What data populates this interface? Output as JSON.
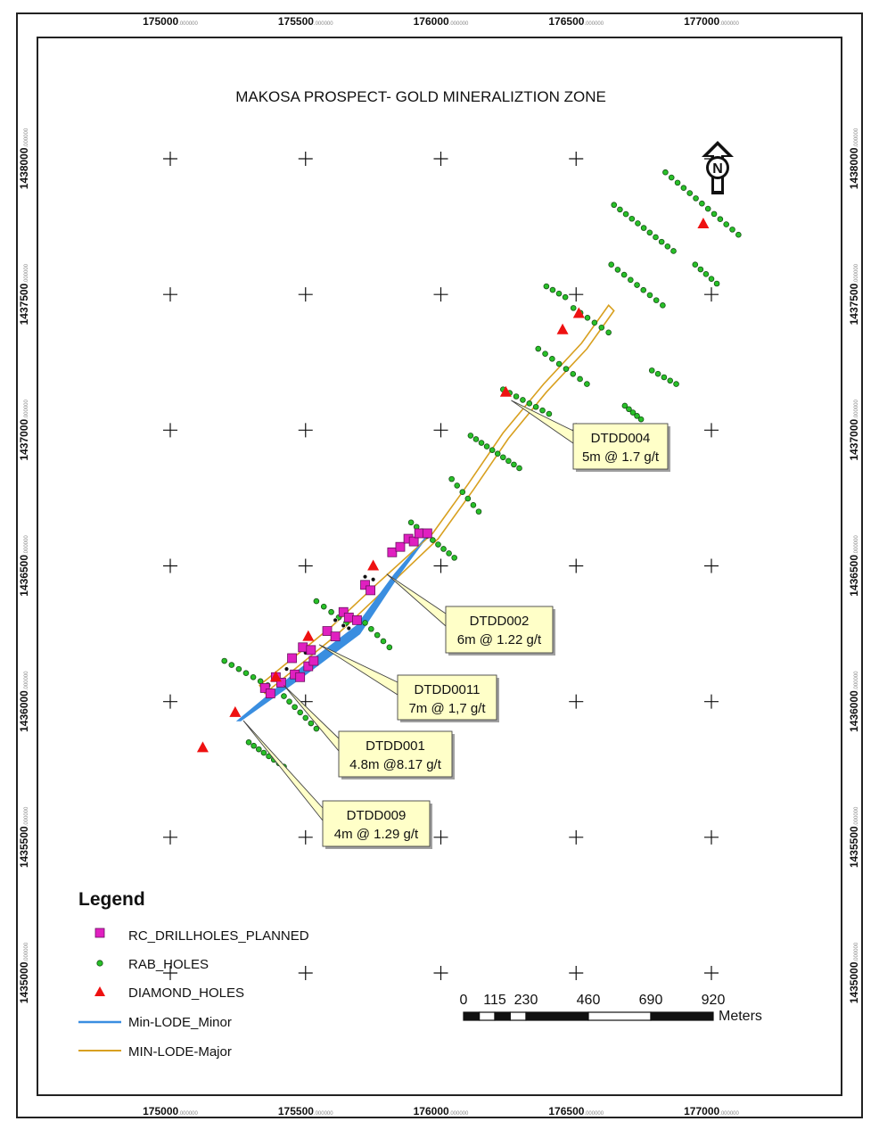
{
  "title": "MAKOSA PROSPECT- GOLD MINERALIZTION ZONE",
  "north_arrow": {
    "icon": "north-arrow-icon",
    "label": "N"
  },
  "grid": {
    "easting_labels": [
      "175000",
      "175500",
      "176000",
      "176500",
      "177000"
    ],
    "northing_labels": [
      "1435000",
      "1435500",
      "1436000",
      "1436500",
      "1437000",
      "1437500",
      "1438000"
    ],
    "easting_values": [
      175000,
      175500,
      176000,
      176500,
      177000
    ],
    "northing_values": [
      1435000,
      1435500,
      1436000,
      1436500,
      1437000,
      1437500,
      1438000
    ],
    "label_suffix": ".000000"
  },
  "callouts": [
    {
      "line1": "DTDD004",
      "line2": "5m @ 1.7 g/t",
      "target": [
        176260,
        1437110
      ]
    },
    {
      "line1": "DTDD002",
      "line2": "6m @ 1.22 g/t",
      "target": [
        175800,
        1436470
      ]
    },
    {
      "line1": "DTDD0011",
      "line2": "7m @ 1,7 g/t",
      "target": [
        175550,
        1436210
      ]
    },
    {
      "line1": "DTDD001",
      "line2": "4.8m @8.17 g/t",
      "target": [
        175420,
        1436060
      ]
    },
    {
      "line1": "DTDD009",
      "line2": "4m @ 1.29 g/t",
      "target": [
        175270,
        1435930
      ]
    }
  ],
  "legend": {
    "title": "Legend",
    "items": [
      {
        "label": "RC_DRILLHOLES_PLANNED",
        "symbol": "square",
        "color": "#e020c0"
      },
      {
        "label": "RAB_HOLES",
        "symbol": "dot",
        "color": "#28c028"
      },
      {
        "label": "DIAMOND_HOLES",
        "symbol": "triangle",
        "color": "#ee1111"
      },
      {
        "label": "Min-LODE_Minor",
        "symbol": "line",
        "color": "#3a8ee0"
      },
      {
        "label": "MIN-LODE-Major",
        "symbol": "line",
        "color": "#d8a020"
      }
    ]
  },
  "scale_bar": {
    "labels": [
      "0",
      "115",
      "230",
      "460",
      "690",
      "920"
    ],
    "values": [
      0,
      115,
      230,
      460,
      690,
      920
    ],
    "unit": "Meters"
  },
  "features": {
    "diamond_holes": [
      [
        175120,
        1435830
      ],
      [
        175240,
        1435960
      ],
      [
        175390,
        1436090
      ],
      [
        175510,
        1436240
      ],
      [
        175750,
        1436500
      ],
      [
        176240,
        1437140
      ],
      [
        176450,
        1437370
      ],
      [
        176510,
        1437430
      ],
      [
        176970,
        1437760
      ]
    ],
    "rc_planned": [
      [
        175350,
        1436050
      ],
      [
        175370,
        1436030
      ],
      [
        175390,
        1436090
      ],
      [
        175410,
        1436070
      ],
      [
        175460,
        1436100
      ],
      [
        175480,
        1436090
      ],
      [
        175450,
        1436160
      ],
      [
        175510,
        1436130
      ],
      [
        175530,
        1436150
      ],
      [
        175490,
        1436200
      ],
      [
        175520,
        1436190
      ],
      [
        175580,
        1436260
      ],
      [
        175610,
        1436240
      ],
      [
        175640,
        1436330
      ],
      [
        175660,
        1436310
      ],
      [
        175690,
        1436300
      ],
      [
        175720,
        1436430
      ],
      [
        175740,
        1436410
      ],
      [
        175820,
        1436550
      ],
      [
        175850,
        1436570
      ],
      [
        175880,
        1436600
      ],
      [
        175900,
        1436590
      ],
      [
        175920,
        1436620
      ],
      [
        175950,
        1436620
      ]
    ],
    "rab_lines": [
      [
        [
          175200,
          1436150
        ],
        [
          175360,
          1436060
        ],
        7
      ],
      [
        [
          175420,
          1436020
        ],
        [
          175540,
          1435900
        ],
        7
      ],
      [
        [
          175290,
          1435850
        ],
        [
          175420,
          1435760
        ],
        8
      ],
      [
        [
          175540,
          1436370
        ],
        [
          175650,
          1436290
        ],
        5
      ],
      [
        [
          175720,
          1436290
        ],
        [
          175810,
          1436200
        ],
        5
      ],
      [
        [
          175890,
          1436660
        ],
        [
          176050,
          1436530
        ],
        9
      ],
      [
        [
          176040,
          1436820
        ],
        [
          176140,
          1436700
        ],
        6
      ],
      [
        [
          176110,
          1436980
        ],
        [
          176290,
          1436860
        ],
        10
      ],
      [
        [
          176230,
          1437150
        ],
        [
          176400,
          1437060
        ],
        8
      ],
      [
        [
          176360,
          1437300
        ],
        [
          176540,
          1437170
        ],
        8
      ],
      [
        [
          176390,
          1437530
        ],
        [
          176460,
          1437490
        ],
        4
      ],
      [
        [
          176490,
          1437450
        ],
        [
          176620,
          1437360
        ],
        6
      ],
      [
        [
          176630,
          1437610
        ],
        [
          176820,
          1437460
        ],
        9
      ],
      [
        [
          176640,
          1437830
        ],
        [
          176860,
          1437660
        ],
        11
      ],
      [
        [
          176680,
          1437090
        ],
        [
          176740,
          1437040
        ],
        5
      ],
      [
        [
          176780,
          1437220
        ],
        [
          176870,
          1437170
        ],
        5
      ],
      [
        [
          176830,
          1437950
        ],
        [
          177100,
          1437720
        ],
        13
      ],
      [
        [
          176940,
          1437610
        ],
        [
          177020,
          1437540
        ],
        5
      ]
    ],
    "black_holes": [
      [
        175430,
        1436120
      ],
      [
        175460,
        1436150
      ],
      [
        175500,
        1436180
      ],
      [
        175610,
        1436300
      ],
      [
        175640,
        1436280
      ],
      [
        175660,
        1436270
      ],
      [
        175720,
        1436460
      ],
      [
        175750,
        1436450
      ]
    ],
    "lode_major": [
      [
        175330,
        1436060
      ],
      [
        175600,
        1436280
      ],
      [
        175760,
        1436430
      ],
      [
        175970,
        1436620
      ],
      [
        176100,
        1436800
      ],
      [
        176230,
        1436990
      ],
      [
        176380,
        1437170
      ],
      [
        176520,
        1437320
      ],
      [
        176620,
        1437460
      ],
      [
        176640,
        1437440
      ],
      [
        176540,
        1437300
      ],
      [
        176390,
        1437140
      ],
      [
        176250,
        1436970
      ],
      [
        176120,
        1436780
      ],
      [
        175990,
        1436600
      ],
      [
        175790,
        1436410
      ],
      [
        175620,
        1436250
      ],
      [
        175350,
        1436030
      ]
    ],
    "lode_minor": [
      [
        175250,
        1435930
      ],
      [
        175480,
        1436120
      ],
      [
        175690,
        1436280
      ],
      [
        175830,
        1436470
      ],
      [
        175940,
        1436600
      ],
      [
        175950,
        1436610
      ],
      [
        175840,
        1436460
      ],
      [
        175700,
        1436250
      ],
      [
        175500,
        1436100
      ],
      [
        175260,
        1435930
      ]
    ]
  }
}
